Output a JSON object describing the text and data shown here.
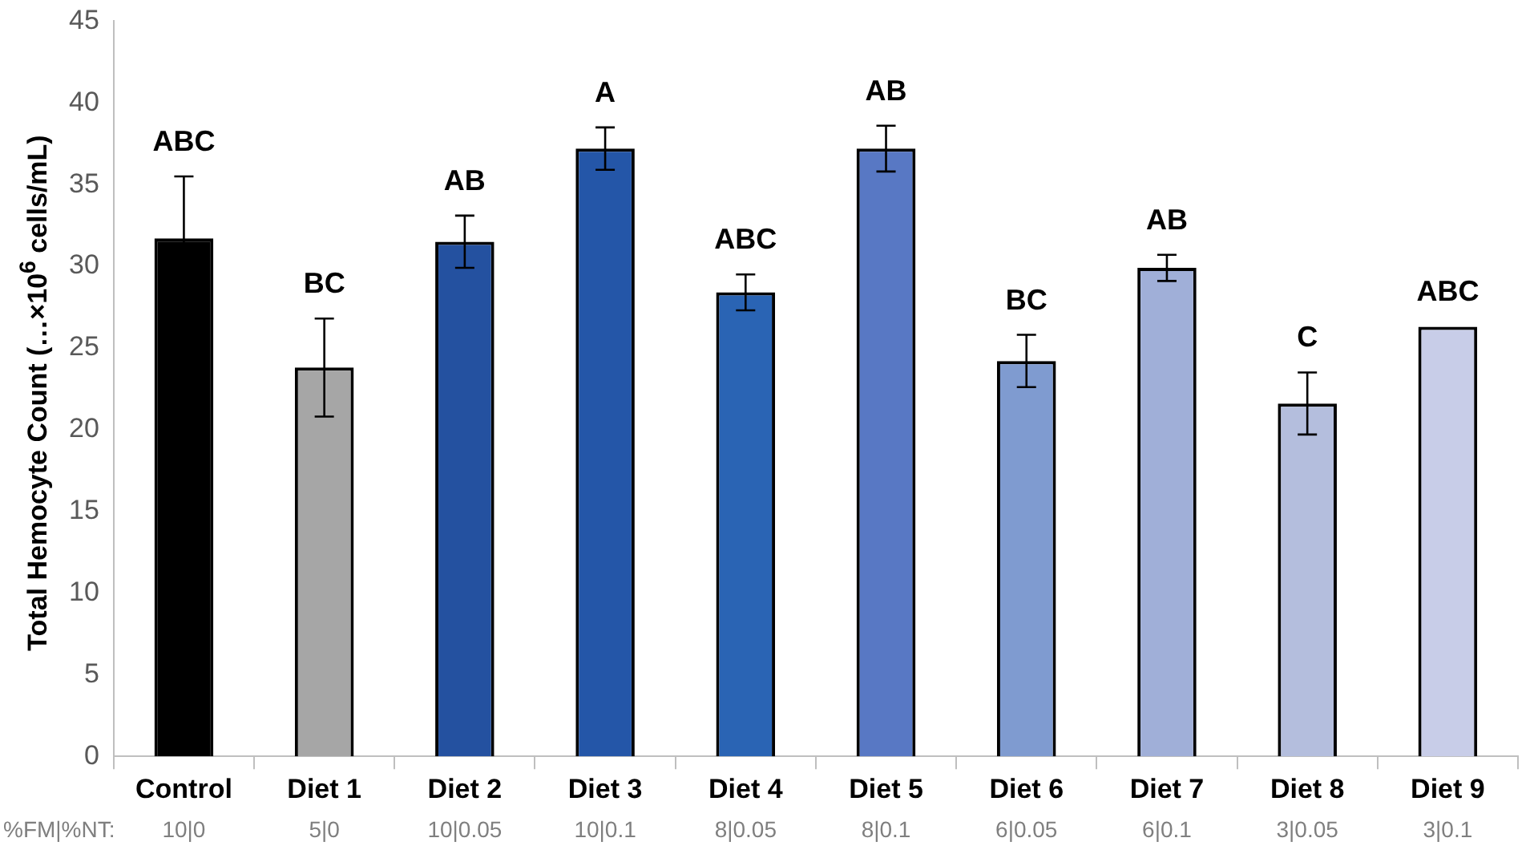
{
  "chart_data": {
    "type": "bar",
    "ylabel": "Total Hemocyte Count (…×10$^{6}$ cells/mL)",
    "categories": [
      "Control",
      "Diet 1",
      "Diet 2",
      "Diet 3",
      "Diet 4",
      "Diet 5",
      "Diet 6",
      "Diet 7",
      "Diet 8",
      "Diet 9"
    ],
    "values": [
      31.7,
      23.8,
      31.5,
      37.2,
      28.4,
      37.2,
      24.2,
      29.9,
      21.6,
      26.3
    ],
    "errors": [
      3.8,
      3.0,
      1.6,
      1.3,
      1.1,
      1.4,
      1.6,
      0.8,
      1.9,
      null
    ],
    "colors": [
      "#000000",
      "#a6a6a6",
      "#2451a0",
      "#2456a8",
      "#2a64b4",
      "#5878c4",
      "#7f9bd0",
      "#a0afd8",
      "#b4bedd",
      "#c8cde8"
    ],
    "value_labels": [
      "ABC",
      "BC",
      "AB",
      "A",
      "ABC",
      "AB",
      "BC",
      "AB",
      "C",
      "ABC"
    ],
    "annotations": [
      "%FM|%NT:",
      "10|0",
      "5|0",
      "10|0.05",
      "10|0.1",
      "8|0.05",
      "8|0.1",
      "6|0.05",
      "6|0.1",
      "3|0.05",
      "3|0.1"
    ],
    "ylim": [
      0,
      45
    ],
    "yticks": [
      0,
      5,
      10,
      15,
      20,
      25,
      30,
      35,
      40,
      45
    ],
    "grid": false,
    "legend": false
  }
}
